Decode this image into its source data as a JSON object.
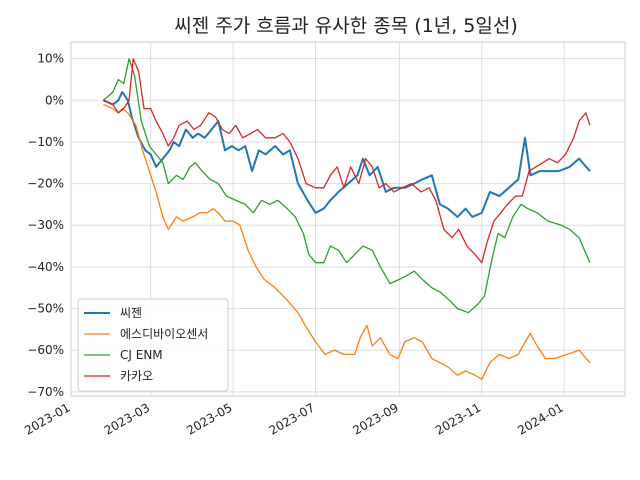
{
  "chart_data": {
    "type": "line",
    "title": "씨젠 주가 흐름과 유사한 종목 (1년, 5일선)",
    "xlabel": "",
    "ylabel": "",
    "x_ticks": [
      "2023-01-01",
      "2023-03-01",
      "2023-05-01",
      "2023-07-01",
      "2023-09-01",
      "2023-11-01",
      "2024-01-01"
    ],
    "x_tick_labels": [
      "2023-01",
      "2023-03",
      "2023-05",
      "2023-07",
      "2023-09",
      "2023-11",
      "2024-01"
    ],
    "xlim": [
      "2023-01-01",
      "2024-02-15"
    ],
    "ylim": [
      -71,
      14
    ],
    "y_ticks": [
      10,
      0,
      -10,
      -20,
      -30,
      -40,
      -50,
      -60,
      -70
    ],
    "y_tick_labels": [
      "10%",
      "0%",
      "−10%",
      "−20%",
      "−30%",
      "−40%",
      "−50%",
      "−60%",
      "−70%"
    ],
    "grid": true,
    "legend_position": "lower-left",
    "series": [
      {
        "name": "씨젠",
        "color": "#1f77b4",
        "width": 2,
        "points": [
          [
            "2023-01-25",
            0
          ],
          [
            "2023-02-01",
            -1
          ],
          [
            "2023-02-05",
            0
          ],
          [
            "2023-02-08",
            2
          ],
          [
            "2023-02-12",
            0
          ],
          [
            "2023-02-15",
            -4
          ],
          [
            "2023-02-20",
            -9
          ],
          [
            "2023-02-25",
            -12
          ],
          [
            "2023-03-01",
            -13
          ],
          [
            "2023-03-05",
            -16
          ],
          [
            "2023-03-10",
            -14
          ],
          [
            "2023-03-15",
            -12
          ],
          [
            "2023-03-18",
            -10
          ],
          [
            "2023-03-22",
            -11
          ],
          [
            "2023-03-27",
            -7
          ],
          [
            "2023-04-01",
            -9
          ],
          [
            "2023-04-05",
            -8
          ],
          [
            "2023-04-10",
            -9
          ],
          [
            "2023-04-15",
            -7
          ],
          [
            "2023-04-20",
            -5
          ],
          [
            "2023-04-25",
            -12
          ],
          [
            "2023-04-30",
            -11
          ],
          [
            "2023-05-05",
            -12
          ],
          [
            "2023-05-10",
            -11
          ],
          [
            "2023-05-15",
            -17
          ],
          [
            "2023-05-20",
            -12
          ],
          [
            "2023-05-25",
            -13
          ],
          [
            "2023-06-01",
            -11
          ],
          [
            "2023-06-07",
            -13
          ],
          [
            "2023-06-12",
            -12
          ],
          [
            "2023-06-18",
            -20
          ],
          [
            "2023-06-25",
            -24
          ],
          [
            "2023-07-01",
            -27
          ],
          [
            "2023-07-07",
            -26
          ],
          [
            "2023-07-12",
            -24
          ],
          [
            "2023-07-18",
            -22
          ],
          [
            "2023-07-25",
            -20
          ],
          [
            "2023-08-01",
            -18
          ],
          [
            "2023-08-05",
            -14
          ],
          [
            "2023-08-10",
            -18
          ],
          [
            "2023-08-16",
            -16
          ],
          [
            "2023-08-22",
            -22
          ],
          [
            "2023-08-28",
            -21
          ],
          [
            "2023-09-05",
            -21
          ],
          [
            "2023-09-12",
            -20
          ],
          [
            "2023-09-18",
            -19
          ],
          [
            "2023-09-25",
            -18
          ],
          [
            "2023-10-01",
            -25
          ],
          [
            "2023-10-07",
            -26
          ],
          [
            "2023-10-14",
            -28
          ],
          [
            "2023-10-20",
            -26
          ],
          [
            "2023-10-25",
            -28
          ],
          [
            "2023-11-01",
            -27
          ],
          [
            "2023-11-07",
            -22
          ],
          [
            "2023-11-14",
            -23
          ],
          [
            "2023-11-21",
            -21
          ],
          [
            "2023-11-28",
            -19
          ],
          [
            "2023-12-03",
            -9
          ],
          [
            "2023-12-07",
            -18
          ],
          [
            "2023-12-14",
            -17
          ],
          [
            "2023-12-21",
            -17
          ],
          [
            "2023-12-28",
            -17
          ],
          [
            "2024-01-05",
            -16
          ],
          [
            "2024-01-12",
            -14
          ],
          [
            "2024-01-20",
            -17
          ]
        ]
      },
      {
        "name": "에스디바이오센서",
        "color": "#ff7f0e",
        "width": 1.3,
        "points": [
          [
            "2023-01-25",
            -1
          ],
          [
            "2023-02-01",
            -2
          ],
          [
            "2023-02-05",
            -3
          ],
          [
            "2023-02-08",
            -2
          ],
          [
            "2023-02-12",
            -3
          ],
          [
            "2023-02-18",
            -6
          ],
          [
            "2023-02-23",
            -12
          ],
          [
            "2023-03-01",
            -18
          ],
          [
            "2023-03-05",
            -22
          ],
          [
            "2023-03-10",
            -28
          ],
          [
            "2023-03-14",
            -31
          ],
          [
            "2023-03-20",
            -28
          ],
          [
            "2023-03-25",
            -29
          ],
          [
            "2023-04-01",
            -28
          ],
          [
            "2023-04-06",
            -27
          ],
          [
            "2023-04-12",
            -27
          ],
          [
            "2023-04-16",
            -26
          ],
          [
            "2023-04-20",
            -27
          ],
          [
            "2023-04-25",
            -29
          ],
          [
            "2023-05-01",
            -29
          ],
          [
            "2023-05-06",
            -30
          ],
          [
            "2023-05-12",
            -36
          ],
          [
            "2023-05-18",
            -40
          ],
          [
            "2023-05-24",
            -43
          ],
          [
            "2023-06-01",
            -45
          ],
          [
            "2023-06-10",
            -48
          ],
          [
            "2023-06-18",
            -51
          ],
          [
            "2023-06-25",
            -55
          ],
          [
            "2023-07-01",
            -58
          ],
          [
            "2023-07-08",
            -61
          ],
          [
            "2023-07-15",
            -60
          ],
          [
            "2023-07-22",
            -61
          ],
          [
            "2023-07-30",
            -61
          ],
          [
            "2023-08-03",
            -57
          ],
          [
            "2023-08-08",
            -54
          ],
          [
            "2023-08-12",
            -59
          ],
          [
            "2023-08-18",
            -57
          ],
          [
            "2023-08-25",
            -61
          ],
          [
            "2023-08-31",
            -62
          ],
          [
            "2023-09-05",
            -58
          ],
          [
            "2023-09-12",
            -57
          ],
          [
            "2023-09-18",
            -58
          ],
          [
            "2023-09-25",
            -62
          ],
          [
            "2023-10-01",
            -63
          ],
          [
            "2023-10-07",
            -64
          ],
          [
            "2023-10-14",
            -66
          ],
          [
            "2023-10-20",
            -65
          ],
          [
            "2023-10-27",
            -66
          ],
          [
            "2023-11-01",
            -67
          ],
          [
            "2023-11-07",
            -63
          ],
          [
            "2023-11-14",
            -61
          ],
          [
            "2023-11-21",
            -62
          ],
          [
            "2023-11-28",
            -61
          ],
          [
            "2023-12-03",
            -58
          ],
          [
            "2023-12-07",
            -56
          ],
          [
            "2023-12-12",
            -59
          ],
          [
            "2023-12-18",
            -62
          ],
          [
            "2023-12-25",
            -62
          ],
          [
            "2024-01-03",
            -61
          ],
          [
            "2024-01-12",
            -60
          ],
          [
            "2024-01-20",
            -63
          ]
        ]
      },
      {
        "name": "CJ ENM",
        "color": "#2ca02c",
        "width": 1.3,
        "points": [
          [
            "2023-01-25",
            0
          ],
          [
            "2023-02-01",
            2
          ],
          [
            "2023-02-05",
            5
          ],
          [
            "2023-02-09",
            4
          ],
          [
            "2023-02-13",
            10
          ],
          [
            "2023-02-17",
            6
          ],
          [
            "2023-02-22",
            -5
          ],
          [
            "2023-02-28",
            -11
          ],
          [
            "2023-03-05",
            -13
          ],
          [
            "2023-03-10",
            -15
          ],
          [
            "2023-03-14",
            -20
          ],
          [
            "2023-03-20",
            -18
          ],
          [
            "2023-03-25",
            -19
          ],
          [
            "2023-03-30",
            -16
          ],
          [
            "2023-04-03",
            -15
          ],
          [
            "2023-04-08",
            -17
          ],
          [
            "2023-04-14",
            -19
          ],
          [
            "2023-04-20",
            -20
          ],
          [
            "2023-04-26",
            -23
          ],
          [
            "2023-05-03",
            -24
          ],
          [
            "2023-05-10",
            -25
          ],
          [
            "2023-05-16",
            -27
          ],
          [
            "2023-05-22",
            -24
          ],
          [
            "2023-05-28",
            -25
          ],
          [
            "2023-06-03",
            -24
          ],
          [
            "2023-06-10",
            -26
          ],
          [
            "2023-06-16",
            -28
          ],
          [
            "2023-06-22",
            -32
          ],
          [
            "2023-06-26",
            -37
          ],
          [
            "2023-07-01",
            -39
          ],
          [
            "2023-07-07",
            -39
          ],
          [
            "2023-07-12",
            -35
          ],
          [
            "2023-07-18",
            -36
          ],
          [
            "2023-07-24",
            -39
          ],
          [
            "2023-07-30",
            -37
          ],
          [
            "2023-08-05",
            -35
          ],
          [
            "2023-08-12",
            -36
          ],
          [
            "2023-08-18",
            -40
          ],
          [
            "2023-08-25",
            -44
          ],
          [
            "2023-09-01",
            -43
          ],
          [
            "2023-09-07",
            -42
          ],
          [
            "2023-09-12",
            -41
          ],
          [
            "2023-09-18",
            -43
          ],
          [
            "2023-09-25",
            -45
          ],
          [
            "2023-10-01",
            -46
          ],
          [
            "2023-10-08",
            -48
          ],
          [
            "2023-10-14",
            -50
          ],
          [
            "2023-10-22",
            -51
          ],
          [
            "2023-10-29",
            -49
          ],
          [
            "2023-11-03",
            -47
          ],
          [
            "2023-11-08",
            -39
          ],
          [
            "2023-11-13",
            -32
          ],
          [
            "2023-11-18",
            -33
          ],
          [
            "2023-11-24",
            -28
          ],
          [
            "2023-11-30",
            -25
          ],
          [
            "2023-12-05",
            -26
          ],
          [
            "2023-12-12",
            -27
          ],
          [
            "2023-12-20",
            -29
          ],
          [
            "2023-12-30",
            -30
          ],
          [
            "2024-01-05",
            -31
          ],
          [
            "2024-01-12",
            -33
          ],
          [
            "2024-01-20",
            -39
          ]
        ]
      },
      {
        "name": "카카오",
        "color": "#d62728",
        "width": 1.3,
        "points": [
          [
            "2023-01-25",
            0
          ],
          [
            "2023-02-01",
            -1
          ],
          [
            "2023-02-05",
            -3
          ],
          [
            "2023-02-09",
            -2
          ],
          [
            "2023-02-13",
            0
          ],
          [
            "2023-02-16",
            10
          ],
          [
            "2023-02-20",
            7
          ],
          [
            "2023-02-24",
            -2
          ],
          [
            "2023-03-01",
            -2
          ],
          [
            "2023-03-05",
            -5
          ],
          [
            "2023-03-10",
            -8
          ],
          [
            "2023-03-14",
            -11
          ],
          [
            "2023-03-18",
            -9
          ],
          [
            "2023-03-22",
            -6
          ],
          [
            "2023-03-28",
            -5
          ],
          [
            "2023-04-02",
            -7
          ],
          [
            "2023-04-07",
            -6
          ],
          [
            "2023-04-13",
            -3
          ],
          [
            "2023-04-18",
            -4
          ],
          [
            "2023-04-23",
            -7
          ],
          [
            "2023-04-28",
            -8
          ],
          [
            "2023-05-03",
            -6
          ],
          [
            "2023-05-08",
            -9
          ],
          [
            "2023-05-14",
            -8
          ],
          [
            "2023-05-19",
            -7
          ],
          [
            "2023-05-25",
            -9
          ],
          [
            "2023-06-01",
            -9
          ],
          [
            "2023-06-07",
            -8
          ],
          [
            "2023-06-12",
            -10
          ],
          [
            "2023-06-18",
            -14
          ],
          [
            "2023-06-24",
            -20
          ],
          [
            "2023-07-01",
            -21
          ],
          [
            "2023-07-07",
            -21
          ],
          [
            "2023-07-12",
            -18
          ],
          [
            "2023-07-17",
            -16
          ],
          [
            "2023-07-22",
            -21
          ],
          [
            "2023-07-27",
            -16
          ],
          [
            "2023-08-02",
            -20
          ],
          [
            "2023-08-07",
            -14
          ],
          [
            "2023-08-12",
            -16
          ],
          [
            "2023-08-17",
            -21
          ],
          [
            "2023-08-22",
            -20
          ],
          [
            "2023-08-28",
            -22
          ],
          [
            "2023-09-03",
            -21
          ],
          [
            "2023-09-10",
            -20
          ],
          [
            "2023-09-17",
            -22
          ],
          [
            "2023-09-23",
            -21
          ],
          [
            "2023-09-28",
            -24
          ],
          [
            "2023-10-04",
            -31
          ],
          [
            "2023-10-10",
            -33
          ],
          [
            "2023-10-15",
            -31
          ],
          [
            "2023-10-21",
            -35
          ],
          [
            "2023-10-27",
            -37
          ],
          [
            "2023-11-01",
            -39
          ],
          [
            "2023-11-05",
            -34
          ],
          [
            "2023-11-10",
            -29
          ],
          [
            "2023-11-15",
            -27
          ],
          [
            "2023-11-20",
            -25
          ],
          [
            "2023-11-26",
            -23
          ],
          [
            "2023-12-01",
            -23
          ],
          [
            "2023-12-06",
            -17
          ],
          [
            "2023-12-11",
            -16
          ],
          [
            "2023-12-16",
            -15
          ],
          [
            "2023-12-21",
            -14
          ],
          [
            "2023-12-27",
            -15
          ],
          [
            "2024-01-02",
            -13
          ],
          [
            "2024-01-08",
            -9
          ],
          [
            "2024-01-12",
            -5
          ],
          [
            "2024-01-17",
            -3
          ],
          [
            "2024-01-20",
            -6
          ]
        ]
      }
    ]
  }
}
